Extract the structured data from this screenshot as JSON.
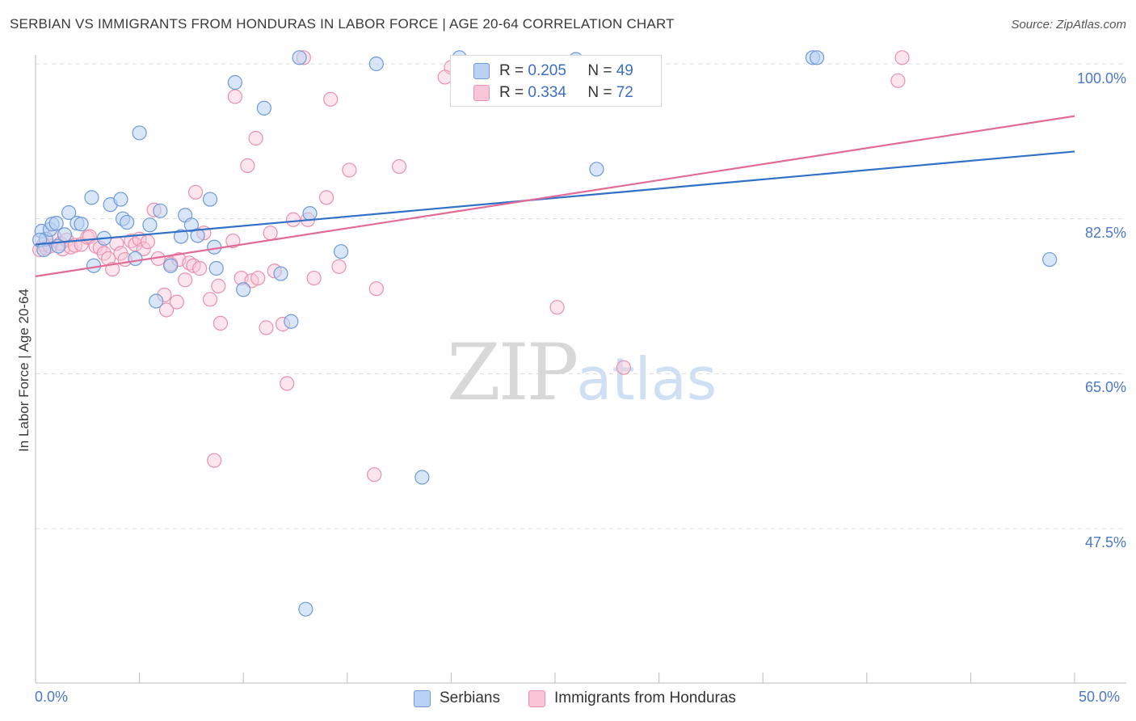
{
  "header": {
    "title": "SERBIAN VS IMMIGRANTS FROM HONDURAS IN LABOR FORCE | AGE 20-64 CORRELATION CHART",
    "source": "Source: ZipAtlas.com"
  },
  "watermark": {
    "zip": "ZIP",
    "atlas": "atlas"
  },
  "legend": {
    "r_label": "R =",
    "n_label": "N =",
    "serbians": {
      "r": "0.205",
      "n": "49"
    },
    "honduras": {
      "r": "0.334",
      "n": "72"
    }
  },
  "bottom_legend": {
    "serbians": "Serbians",
    "honduras": "Immigrants from Honduras"
  },
  "colors": {
    "serbians_fill": "#b9d2f3",
    "serbians_stroke": "#6e9ad6",
    "serbians_line": "#3170c8",
    "honduras_fill": "#f8c6d6",
    "honduras_stroke": "#e891ad",
    "honduras_line": "#e26b96",
    "tick_label": "#4a78c8"
  },
  "chart_data": {
    "type": "scatter",
    "title": "SERBIAN VS IMMIGRANTS FROM HONDURAS IN LABOR FORCE | AGE 20-64 CORRELATION CHART",
    "xlabel": "",
    "ylabel": "In Labor Force | Age 20-64",
    "xlim": [
      0,
      50
    ],
    "ylim": [
      31.5,
      102
    ],
    "x_tick_labels": [
      "0.0%",
      "50.0%"
    ],
    "y_ticks": [
      {
        "value": 100.0,
        "label": "100.0%"
      },
      {
        "value": 82.5,
        "label": "82.5%"
      },
      {
        "value": 65.0,
        "label": "65.0%"
      },
      {
        "value": 47.5,
        "label": "47.5%"
      }
    ],
    "grid": true,
    "series": [
      {
        "name": "Serbians",
        "r": 0.205,
        "n": 49,
        "trend": [
          [
            0,
            79.6
          ],
          [
            50,
            90.1
          ]
        ],
        "points": [
          [
            0.3,
            81.1
          ],
          [
            0.5,
            80.2
          ],
          [
            0.7,
            81.3
          ],
          [
            0.8,
            81.9
          ],
          [
            1.0,
            82.0
          ],
          [
            1.1,
            79.4
          ],
          [
            1.4,
            80.7
          ],
          [
            1.6,
            83.2
          ],
          [
            2.0,
            82.0
          ],
          [
            2.2,
            81.9
          ],
          [
            2.7,
            84.9
          ],
          [
            2.8,
            77.2
          ],
          [
            3.3,
            80.3
          ],
          [
            3.6,
            84.1
          ],
          [
            4.1,
            84.7
          ],
          [
            4.2,
            82.5
          ],
          [
            4.4,
            82.1
          ],
          [
            4.8,
            78.0
          ],
          [
            5.0,
            92.2
          ],
          [
            5.5,
            81.8
          ],
          [
            5.8,
            73.2
          ],
          [
            6.0,
            83.4
          ],
          [
            6.5,
            77.2
          ],
          [
            7.0,
            80.5
          ],
          [
            7.2,
            82.9
          ],
          [
            7.5,
            81.8
          ],
          [
            7.8,
            80.6
          ],
          [
            8.4,
            84.7
          ],
          [
            8.6,
            79.3
          ],
          [
            8.7,
            76.9
          ],
          [
            9.6,
            97.9
          ],
          [
            10.0,
            74.5
          ],
          [
            11.0,
            95.0
          ],
          [
            11.8,
            76.3
          ],
          [
            12.3,
            70.9
          ],
          [
            12.7,
            100.7
          ],
          [
            13.0,
            38.4
          ],
          [
            13.2,
            83.1
          ],
          [
            14.7,
            78.8
          ],
          [
            16.4,
            100.0
          ],
          [
            18.6,
            53.3
          ],
          [
            20.4,
            100.7
          ],
          [
            26.0,
            100.5
          ],
          [
            27.0,
            88.1
          ],
          [
            37.4,
            100.7
          ],
          [
            37.6,
            100.7
          ],
          [
            48.8,
            77.9
          ],
          [
            0.2,
            80.1
          ],
          [
            0.4,
            79.0
          ]
        ]
      },
      {
        "name": "Immigrants from Honduras",
        "r": 0.334,
        "n": 72,
        "trend": [
          [
            0,
            76.0
          ],
          [
            50,
            94.1
          ]
        ],
        "points": [
          [
            0.2,
            79.0
          ],
          [
            0.4,
            79.6
          ],
          [
            0.5,
            79.2
          ],
          [
            0.7,
            79.4
          ],
          [
            0.9,
            80.5
          ],
          [
            1.2,
            79.7
          ],
          [
            1.3,
            79.1
          ],
          [
            1.5,
            80.1
          ],
          [
            1.7,
            79.3
          ],
          [
            1.9,
            79.5
          ],
          [
            2.2,
            79.6
          ],
          [
            2.5,
            80.4
          ],
          [
            2.6,
            80.5
          ],
          [
            2.9,
            79.4
          ],
          [
            3.1,
            79.2
          ],
          [
            3.3,
            78.6
          ],
          [
            3.5,
            78.0
          ],
          [
            3.7,
            76.8
          ],
          [
            3.9,
            79.7
          ],
          [
            4.1,
            78.6
          ],
          [
            4.3,
            77.9
          ],
          [
            4.6,
            80.0
          ],
          [
            4.8,
            79.6
          ],
          [
            5.0,
            80.2
          ],
          [
            5.2,
            79.1
          ],
          [
            5.4,
            79.9
          ],
          [
            5.7,
            83.5
          ],
          [
            5.9,
            78.0
          ],
          [
            6.2,
            73.9
          ],
          [
            6.3,
            72.2
          ],
          [
            6.5,
            77.4
          ],
          [
            6.8,
            73.1
          ],
          [
            6.9,
            77.9
          ],
          [
            7.2,
            75.6
          ],
          [
            7.4,
            77.5
          ],
          [
            7.6,
            77.2
          ],
          [
            7.7,
            85.5
          ],
          [
            7.9,
            76.9
          ],
          [
            8.1,
            80.9
          ],
          [
            8.4,
            73.4
          ],
          [
            8.6,
            55.2
          ],
          [
            8.8,
            74.9
          ],
          [
            8.9,
            70.7
          ],
          [
            9.5,
            80.0
          ],
          [
            9.6,
            96.3
          ],
          [
            9.9,
            75.8
          ],
          [
            10.2,
            88.5
          ],
          [
            10.4,
            75.5
          ],
          [
            10.6,
            91.6
          ],
          [
            10.7,
            75.8
          ],
          [
            11.1,
            70.2
          ],
          [
            11.3,
            80.9
          ],
          [
            11.5,
            76.6
          ],
          [
            11.9,
            70.6
          ],
          [
            12.1,
            63.9
          ],
          [
            12.4,
            82.4
          ],
          [
            12.9,
            100.7
          ],
          [
            13.1,
            82.4
          ],
          [
            13.4,
            75.8
          ],
          [
            14.0,
            84.9
          ],
          [
            14.2,
            96.0
          ],
          [
            14.6,
            77.1
          ],
          [
            15.1,
            88.0
          ],
          [
            16.3,
            53.6
          ],
          [
            16.4,
            74.6
          ],
          [
            17.5,
            88.4
          ],
          [
            20.0,
            99.6
          ],
          [
            25.1,
            72.5
          ],
          [
            28.3,
            65.7
          ],
          [
            41.7,
            100.7
          ],
          [
            41.5,
            98.1
          ],
          [
            19.7,
            98.5
          ]
        ]
      }
    ]
  }
}
